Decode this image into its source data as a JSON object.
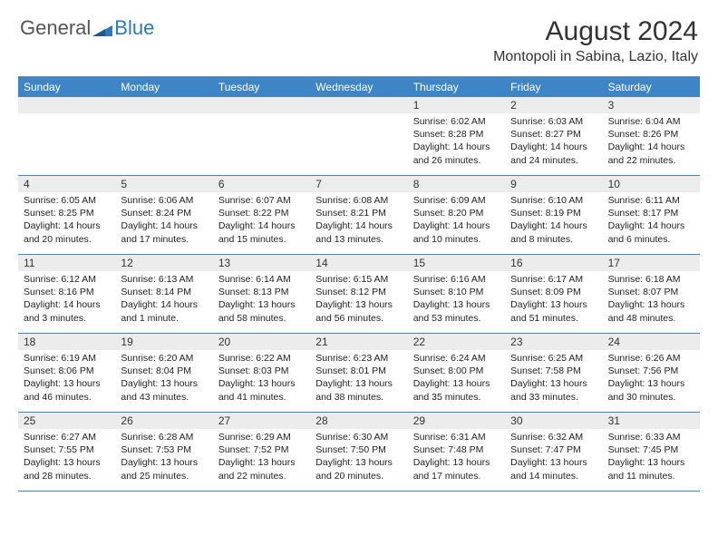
{
  "logo": {
    "general": "General",
    "blue": "Blue"
  },
  "title": "August 2024",
  "location": "Montopoli in Sabina, Lazio, Italy",
  "colors": {
    "header_bg": "#3d85c6",
    "header_text": "#ffffff",
    "daynum_bg": "#ececec",
    "week_border": "#3d85c6",
    "logo_blue": "#2a7ab8",
    "logo_gray": "#555555",
    "body_text": "#222222"
  },
  "weekdays": [
    "Sunday",
    "Monday",
    "Tuesday",
    "Wednesday",
    "Thursday",
    "Friday",
    "Saturday"
  ],
  "weeks": [
    [
      {
        "n": "",
        "sr": "",
        "ss": "",
        "dl": ""
      },
      {
        "n": "",
        "sr": "",
        "ss": "",
        "dl": ""
      },
      {
        "n": "",
        "sr": "",
        "ss": "",
        "dl": ""
      },
      {
        "n": "",
        "sr": "",
        "ss": "",
        "dl": ""
      },
      {
        "n": "1",
        "sr": "Sunrise: 6:02 AM",
        "ss": "Sunset: 8:28 PM",
        "dl": "Daylight: 14 hours and 26 minutes."
      },
      {
        "n": "2",
        "sr": "Sunrise: 6:03 AM",
        "ss": "Sunset: 8:27 PM",
        "dl": "Daylight: 14 hours and 24 minutes."
      },
      {
        "n": "3",
        "sr": "Sunrise: 6:04 AM",
        "ss": "Sunset: 8:26 PM",
        "dl": "Daylight: 14 hours and 22 minutes."
      }
    ],
    [
      {
        "n": "4",
        "sr": "Sunrise: 6:05 AM",
        "ss": "Sunset: 8:25 PM",
        "dl": "Daylight: 14 hours and 20 minutes."
      },
      {
        "n": "5",
        "sr": "Sunrise: 6:06 AM",
        "ss": "Sunset: 8:24 PM",
        "dl": "Daylight: 14 hours and 17 minutes."
      },
      {
        "n": "6",
        "sr": "Sunrise: 6:07 AM",
        "ss": "Sunset: 8:22 PM",
        "dl": "Daylight: 14 hours and 15 minutes."
      },
      {
        "n": "7",
        "sr": "Sunrise: 6:08 AM",
        "ss": "Sunset: 8:21 PM",
        "dl": "Daylight: 14 hours and 13 minutes."
      },
      {
        "n": "8",
        "sr": "Sunrise: 6:09 AM",
        "ss": "Sunset: 8:20 PM",
        "dl": "Daylight: 14 hours and 10 minutes."
      },
      {
        "n": "9",
        "sr": "Sunrise: 6:10 AM",
        "ss": "Sunset: 8:19 PM",
        "dl": "Daylight: 14 hours and 8 minutes."
      },
      {
        "n": "10",
        "sr": "Sunrise: 6:11 AM",
        "ss": "Sunset: 8:17 PM",
        "dl": "Daylight: 14 hours and 6 minutes."
      }
    ],
    [
      {
        "n": "11",
        "sr": "Sunrise: 6:12 AM",
        "ss": "Sunset: 8:16 PM",
        "dl": "Daylight: 14 hours and 3 minutes."
      },
      {
        "n": "12",
        "sr": "Sunrise: 6:13 AM",
        "ss": "Sunset: 8:14 PM",
        "dl": "Daylight: 14 hours and 1 minute."
      },
      {
        "n": "13",
        "sr": "Sunrise: 6:14 AM",
        "ss": "Sunset: 8:13 PM",
        "dl": "Daylight: 13 hours and 58 minutes."
      },
      {
        "n": "14",
        "sr": "Sunrise: 6:15 AM",
        "ss": "Sunset: 8:12 PM",
        "dl": "Daylight: 13 hours and 56 minutes."
      },
      {
        "n": "15",
        "sr": "Sunrise: 6:16 AM",
        "ss": "Sunset: 8:10 PM",
        "dl": "Daylight: 13 hours and 53 minutes."
      },
      {
        "n": "16",
        "sr": "Sunrise: 6:17 AM",
        "ss": "Sunset: 8:09 PM",
        "dl": "Daylight: 13 hours and 51 minutes."
      },
      {
        "n": "17",
        "sr": "Sunrise: 6:18 AM",
        "ss": "Sunset: 8:07 PM",
        "dl": "Daylight: 13 hours and 48 minutes."
      }
    ],
    [
      {
        "n": "18",
        "sr": "Sunrise: 6:19 AM",
        "ss": "Sunset: 8:06 PM",
        "dl": "Daylight: 13 hours and 46 minutes."
      },
      {
        "n": "19",
        "sr": "Sunrise: 6:20 AM",
        "ss": "Sunset: 8:04 PM",
        "dl": "Daylight: 13 hours and 43 minutes."
      },
      {
        "n": "20",
        "sr": "Sunrise: 6:22 AM",
        "ss": "Sunset: 8:03 PM",
        "dl": "Daylight: 13 hours and 41 minutes."
      },
      {
        "n": "21",
        "sr": "Sunrise: 6:23 AM",
        "ss": "Sunset: 8:01 PM",
        "dl": "Daylight: 13 hours and 38 minutes."
      },
      {
        "n": "22",
        "sr": "Sunrise: 6:24 AM",
        "ss": "Sunset: 8:00 PM",
        "dl": "Daylight: 13 hours and 35 minutes."
      },
      {
        "n": "23",
        "sr": "Sunrise: 6:25 AM",
        "ss": "Sunset: 7:58 PM",
        "dl": "Daylight: 13 hours and 33 minutes."
      },
      {
        "n": "24",
        "sr": "Sunrise: 6:26 AM",
        "ss": "Sunset: 7:56 PM",
        "dl": "Daylight: 13 hours and 30 minutes."
      }
    ],
    [
      {
        "n": "25",
        "sr": "Sunrise: 6:27 AM",
        "ss": "Sunset: 7:55 PM",
        "dl": "Daylight: 13 hours and 28 minutes."
      },
      {
        "n": "26",
        "sr": "Sunrise: 6:28 AM",
        "ss": "Sunset: 7:53 PM",
        "dl": "Daylight: 13 hours and 25 minutes."
      },
      {
        "n": "27",
        "sr": "Sunrise: 6:29 AM",
        "ss": "Sunset: 7:52 PM",
        "dl": "Daylight: 13 hours and 22 minutes."
      },
      {
        "n": "28",
        "sr": "Sunrise: 6:30 AM",
        "ss": "Sunset: 7:50 PM",
        "dl": "Daylight: 13 hours and 20 minutes."
      },
      {
        "n": "29",
        "sr": "Sunrise: 6:31 AM",
        "ss": "Sunset: 7:48 PM",
        "dl": "Daylight: 13 hours and 17 minutes."
      },
      {
        "n": "30",
        "sr": "Sunrise: 6:32 AM",
        "ss": "Sunset: 7:47 PM",
        "dl": "Daylight: 13 hours and 14 minutes."
      },
      {
        "n": "31",
        "sr": "Sunrise: 6:33 AM",
        "ss": "Sunset: 7:45 PM",
        "dl": "Daylight: 13 hours and 11 minutes."
      }
    ]
  ]
}
